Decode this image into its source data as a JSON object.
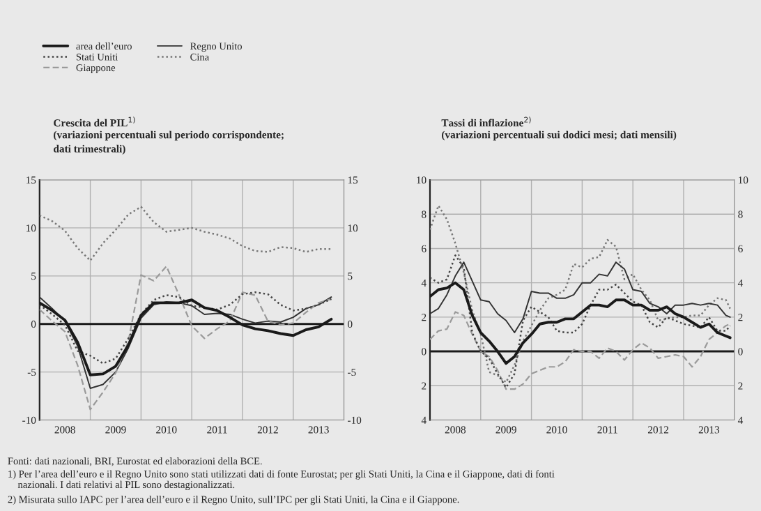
{
  "chart_data": [
    {
      "type": "line",
      "title": "Crescita del PIL$^{1)}$",
      "subtitle": "(variazioni percentuali sul periodo corrispondente;\ndati trimestrali)",
      "x": [
        "2008-01",
        "2008-04",
        "2008-07",
        "2008-10",
        "2009-01",
        "2009-04",
        "2009-07",
        "2009-10",
        "2010-01",
        "2010-04",
        "2010-07",
        "2010-10",
        "2011-01",
        "2011-04",
        "2011-07",
        "2011-10",
        "2012-01",
        "2012-04",
        "2012-07",
        "2012-10",
        "2013-01",
        "2013-04",
        "2013-07",
        "2013-10"
      ],
      "series": [
        {
          "name": "area dell’euro",
          "color": "#1a1a1a",
          "line_style": "solid",
          "values": [
            2.2,
            1.4,
            0.4,
            -1.9,
            -5.3,
            -5.2,
            -4.4,
            -2.2,
            0.9,
            2.2,
            2.2,
            2.2,
            2.5,
            1.7,
            1.4,
            0.7,
            -0.1,
            -0.5,
            -0.7,
            -1.0,
            -1.2,
            -0.6,
            -0.3,
            0.5
          ]
        },
        {
          "name": "Stati Uniti",
          "color": "#444444",
          "line_style": "dotted",
          "values": [
            2.0,
            1.0,
            -0.1,
            -2.8,
            -3.3,
            -4.1,
            -3.6,
            -1.5,
            1.0,
            2.5,
            3.0,
            2.8,
            1.9,
            1.7,
            1.5,
            2.0,
            3.1,
            3.3,
            3.1,
            2.0,
            1.4,
            1.6,
            2.0,
            2.6
          ]
        },
        {
          "name": "Giappone",
          "color": "#9a9a9a",
          "line_style": "dashed",
          "values": [
            1.5,
            0.3,
            -0.8,
            -4.3,
            -8.9,
            -7.1,
            -5.1,
            -1.8,
            5.1,
            4.5,
            6.0,
            3.0,
            -0.2,
            -1.5,
            -0.5,
            0.3,
            3.3,
            3.0,
            0.3,
            -0.1,
            0.1,
            1.2,
            2.2,
            2.6
          ]
        },
        {
          "name": "Regno Unito",
          "color": "#333333",
          "line_style": "solid",
          "values": [
            2.8,
            1.6,
            0.3,
            -2.3,
            -6.7,
            -6.3,
            -5.0,
            -2.5,
            0.6,
            2.0,
            2.3,
            2.2,
            1.9,
            1.0,
            1.1,
            1.0,
            0.5,
            0.1,
            0.3,
            0.2,
            0.7,
            1.6,
            2.0,
            2.8
          ]
        },
        {
          "name": "Cina",
          "color": "#777777",
          "line_style": "dotted",
          "values": [
            11.3,
            10.7,
            9.7,
            7.9,
            6.6,
            8.4,
            9.8,
            11.4,
            12.2,
            10.6,
            9.6,
            9.8,
            10.0,
            9.6,
            9.3,
            8.9,
            8.1,
            7.6,
            7.5,
            8.0,
            7.9,
            7.5,
            7.8,
            7.8
          ]
        }
      ],
      "xlim": [
        "2008-01",
        "2014-01"
      ],
      "xticks": [
        {
          "value": "2008-01",
          "label": null
        },
        {
          "value": "2008-07",
          "label": "2008"
        },
        {
          "value": "2009-01",
          "label": null
        },
        {
          "value": "2009-07",
          "label": "2009"
        },
        {
          "value": "2010-01",
          "label": null
        },
        {
          "value": "2010-07",
          "label": "2010"
        },
        {
          "value": "2011-01",
          "label": null
        },
        {
          "value": "2011-07",
          "label": "2011"
        },
        {
          "value": "2012-01",
          "label": null
        },
        {
          "value": "2012-07",
          "label": "2012"
        },
        {
          "value": "2013-01",
          "label": null
        },
        {
          "value": "2013-07",
          "label": "2013"
        },
        {
          "value": "2014-01",
          "label": null
        }
      ],
      "ylim": [
        -10,
        15
      ],
      "yticks": [
        -10,
        -5,
        0,
        5,
        10,
        15
      ],
      "y2lim": [
        -10,
        15
      ],
      "y2ticks": [
        -10,
        -5,
        0,
        5,
        10,
        15
      ],
      "ref_lines": [
        {
          "axis": "y",
          "value": 0,
          "color": "#1a1a1a"
        }
      ],
      "grid": true,
      "legend": "top left",
      "annotations": [
        "Fonti: dati nazionali, BRI, Eurostat ed elaborazioni della BCE.",
        "1) Per l’area dell’euro e il Regno Unito sono stati utilizzati dati di fonte Eurostat; per gli Stati Uniti, la Cina e il Giappone, dati di fonti\n    nazionali. I dati relativi al PIL sono destagionalizzati.",
        "2) Misurata sullo IAPC per l’area dell’euro e il Regno Unito, sull’IPC per gli Stati Uniti, la Cina e il Giappone."
      ]
    },
    {
      "type": "line",
      "title": "Tassi di inflazione$^{2)}$",
      "subtitle": "(variazioni percentuali sui dodici mesi; dati mensili)",
      "x": [
        "2008-01",
        "2008-03",
        "2008-05",
        "2008-07",
        "2008-09",
        "2008-11",
        "2009-01",
        "2009-03",
        "2009-05",
        "2009-07",
        "2009-09",
        "2009-11",
        "2010-01",
        "2010-03",
        "2010-05",
        "2010-07",
        "2010-09",
        "2010-11",
        "2011-01",
        "2011-03",
        "2011-05",
        "2011-07",
        "2011-09",
        "2011-11",
        "2012-01",
        "2012-03",
        "2012-05",
        "2012-07",
        "2012-09",
        "2012-11",
        "2013-01",
        "2013-03",
        "2013-05",
        "2013-07",
        "2013-09",
        "2013-11",
        "2013-12"
      ],
      "series": [
        {
          "color": "#1a1a1a",
          "line_style": "solid",
          "values": [
            3.2,
            3.6,
            3.7,
            4.0,
            3.6,
            2.1,
            1.1,
            0.6,
            0.0,
            -0.7,
            -0.3,
            0.5,
            1.0,
            1.6,
            1.7,
            1.7,
            1.9,
            1.9,
            2.3,
            2.7,
            2.7,
            2.6,
            3.0,
            3.0,
            2.7,
            2.7,
            2.4,
            2.4,
            2.6,
            2.2,
            2.0,
            1.7,
            1.4,
            1.6,
            1.1,
            0.9,
            0.8
          ]
        },
        {
          "color": "#444444",
          "line_style": "dotted",
          "values": [
            4.3,
            4.0,
            4.2,
            5.6,
            4.9,
            1.1,
            0.0,
            -0.4,
            -1.3,
            -2.1,
            -1.3,
            1.8,
            2.6,
            2.3,
            2.0,
            1.2,
            1.1,
            1.1,
            1.6,
            2.7,
            3.6,
            3.6,
            3.9,
            3.4,
            2.9,
            2.7,
            1.7,
            1.4,
            2.0,
            1.8,
            1.6,
            1.5,
            1.4,
            2.0,
            1.2,
            1.2,
            1.5
          ]
        },
        {
          "color": "#9a9a9a",
          "line_style": "dashed",
          "values": [
            0.7,
            1.2,
            1.3,
            2.3,
            2.1,
            1.0,
            0.0,
            -0.3,
            -1.1,
            -2.2,
            -2.2,
            -1.9,
            -1.3,
            -1.1,
            -0.9,
            -0.9,
            -0.6,
            0.1,
            0.0,
            0.0,
            -0.4,
            0.2,
            0.0,
            -0.5,
            0.1,
            0.5,
            0.2,
            -0.4,
            -0.3,
            -0.2,
            -0.3,
            -0.9,
            -0.3,
            0.7,
            1.1,
            1.5,
            1.6
          ]
        },
        {
          "color": "#333333",
          "line_style": "solid",
          "values": [
            2.2,
            2.5,
            3.3,
            4.4,
            5.2,
            4.1,
            3.0,
            2.9,
            2.2,
            1.8,
            1.1,
            1.9,
            3.5,
            3.4,
            3.4,
            3.1,
            3.1,
            3.3,
            4.0,
            4.0,
            4.5,
            4.4,
            5.2,
            4.8,
            3.6,
            3.5,
            2.8,
            2.6,
            2.2,
            2.7,
            2.7,
            2.8,
            2.7,
            2.8,
            2.7,
            2.1,
            2.0
          ]
        },
        {
          "color": "#777777",
          "line_style": "dotted",
          "values": [
            7.1,
            8.5,
            7.7,
            6.3,
            4.6,
            2.4,
            1.0,
            -1.2,
            -1.4,
            -1.8,
            -0.8,
            0.6,
            1.5,
            2.4,
            3.1,
            3.3,
            3.6,
            5.1,
            4.9,
            5.4,
            5.5,
            6.5,
            6.1,
            4.2,
            4.5,
            3.6,
            3.0,
            1.8,
            1.9,
            2.0,
            2.0,
            2.1,
            2.1,
            2.7,
            3.1,
            3.0,
            2.5
          ]
        }
      ],
      "xlim": [
        "2008-01",
        "2014-01"
      ],
      "xticks": [
        {
          "value": "2008-01",
          "label": null
        },
        {
          "value": "2008-07",
          "label": "2008"
        },
        {
          "value": "2009-01",
          "label": null
        },
        {
          "value": "2009-07",
          "label": "2009"
        },
        {
          "value": "2010-01",
          "label": null
        },
        {
          "value": "2010-07",
          "label": "2010"
        },
        {
          "value": "2011-01",
          "label": null
        },
        {
          "value": "2011-07",
          "label": "2011"
        },
        {
          "value": "2012-01",
          "label": null
        },
        {
          "value": "2012-07",
          "label": "2012"
        },
        {
          "value": "2013-01",
          "label": null
        },
        {
          "value": "2013-07",
          "label": "2013"
        },
        {
          "value": "2014-01",
          "label": null
        }
      ],
      "ylim": [
        -4,
        10
      ],
      "yticks": [
        {
          "value": -4,
          "label": "4"
        },
        {
          "value": -2,
          "label": "2"
        },
        0,
        2,
        4,
        6,
        8,
        10
      ],
      "y2lim": [
        -4,
        10
      ],
      "y2ticks": [
        {
          "value": -4,
          "label": "4"
        },
        {
          "value": -2,
          "label": "2"
        },
        0,
        2,
        4,
        6,
        8,
        10
      ],
      "ref_lines": [
        {
          "axis": "y",
          "value": 0,
          "color": "#1a1a1a"
        }
      ],
      "grid": true
    }
  ]
}
